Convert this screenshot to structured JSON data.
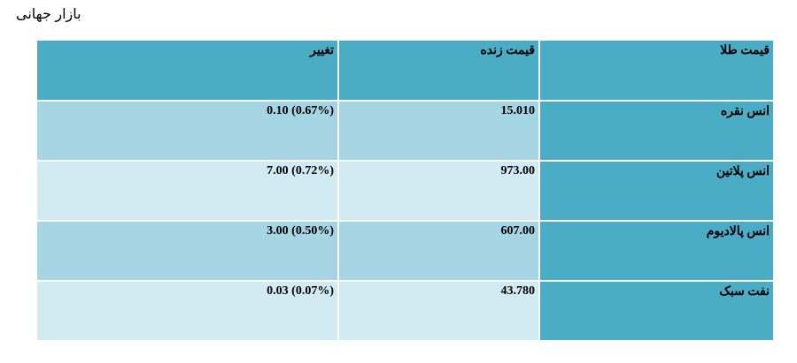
{
  "page": {
    "title": "بازار جهانی"
  },
  "table": {
    "headers": {
      "name": "قیمت طلا",
      "price": "قیمت زنده",
      "change": "تغییر"
    },
    "rows": [
      {
        "name": "انس نقره",
        "price": "15.010",
        "change": "0.10 (0.67%)"
      },
      {
        "name": "انس پلاتین",
        "price": "973.00",
        "change": "7.00 (0.72%)"
      },
      {
        "name": "انس پالادیوم",
        "price": "607.00",
        "change": "3.00 (0.50%)"
      },
      {
        "name": "نفت سبک",
        "price": "43.780",
        "change": "0.03 (0.07%)"
      }
    ]
  },
  "colors": {
    "header_bg": "#4bacc6",
    "name_cell_bg": "#4bacc6",
    "band_dark": "#a5d5e2",
    "band_light": "#d2eaf1"
  }
}
